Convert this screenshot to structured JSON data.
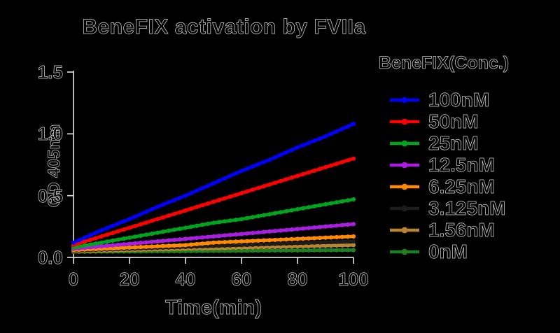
{
  "title": "BeneFIX activation by FVIIa",
  "axes": {
    "x_label": "Time(min)",
    "y_label": "OD 405nm",
    "x_ticks": [
      {
        "label": "0",
        "value": 0
      },
      {
        "label": "20",
        "value": 20
      },
      {
        "label": "40",
        "value": 40
      },
      {
        "label": "60",
        "value": 60
      },
      {
        "label": "80",
        "value": 80
      },
      {
        "label": "100",
        "value": 100
      }
    ],
    "y_ticks": [
      {
        "label": "0.0",
        "value": 0
      },
      {
        "label": "0.5",
        "value": 0.5
      },
      {
        "label": "1.0",
        "value": 1.0
      },
      {
        "label": "1.5",
        "value": 1.5
      }
    ]
  },
  "legend": {
    "title": "BeneFIX(Conc.)",
    "position": "right"
  },
  "chart_data": {
    "type": "line",
    "title": "BeneFIX activation by FVIIa",
    "xlabel": "Time(min)",
    "ylabel": "OD 405nm",
    "xlim": [
      0,
      100
    ],
    "ylim": [
      0,
      1.5
    ],
    "grid": false,
    "markers": true,
    "legend_position": "right",
    "x": [
      0,
      10,
      20,
      30,
      40,
      50,
      60,
      70,
      80,
      90,
      100
    ],
    "series": [
      {
        "name": "100nM",
        "color": "#0000FF",
        "values": [
          0.12,
          0.22,
          0.31,
          0.41,
          0.5,
          0.6,
          0.7,
          0.79,
          0.89,
          0.98,
          1.08
        ]
      },
      {
        "name": "50nM",
        "color": "#FF0000",
        "values": [
          0.1,
          0.17,
          0.24,
          0.31,
          0.38,
          0.45,
          0.52,
          0.59,
          0.66,
          0.73,
          0.8
        ]
      },
      {
        "name": "25nM",
        "color": "#00A51E",
        "values": [
          0.08,
          0.12,
          0.16,
          0.2,
          0.24,
          0.28,
          0.31,
          0.35,
          0.39,
          0.43,
          0.47
        ]
      },
      {
        "name": "12.5nM",
        "color": "#A91EE1",
        "values": [
          0.07,
          0.09,
          0.11,
          0.13,
          0.15,
          0.17,
          0.19,
          0.21,
          0.23,
          0.25,
          0.27
        ]
      },
      {
        "name": "6.25nM",
        "color": "#FF8A00",
        "values": [
          0.06,
          0.07,
          0.08,
          0.09,
          0.1,
          0.12,
          0.13,
          0.14,
          0.15,
          0.16,
          0.17
        ]
      },
      {
        "name": "3.125nM",
        "color": "#1C1C1C",
        "values": [
          0.055,
          0.063,
          0.07,
          0.078,
          0.085,
          0.093,
          0.1,
          0.108,
          0.115,
          0.123,
          0.13
        ]
      },
      {
        "name": "1.56nM",
        "color": "#B9842F",
        "values": [
          0.05,
          0.055,
          0.06,
          0.065,
          0.07,
          0.075,
          0.08,
          0.085,
          0.09,
          0.095,
          0.1
        ]
      },
      {
        "name": "0nM",
        "color": "#1F7E22",
        "values": [
          0.045,
          0.047,
          0.048,
          0.05,
          0.051,
          0.053,
          0.054,
          0.056,
          0.057,
          0.059,
          0.06
        ]
      }
    ]
  }
}
